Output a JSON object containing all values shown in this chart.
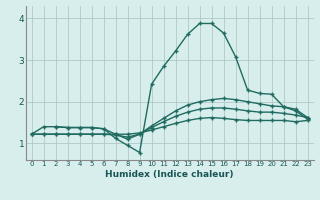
{
  "xlabel": "Humidex (Indice chaleur)",
  "bg_color": "#d8eeed",
  "grid_color": "#b0c8c8",
  "line_color": "#1f6b60",
  "xlim": [
    -0.5,
    23.5
  ],
  "ylim": [
    0.6,
    4.3
  ],
  "xticks": [
    0,
    1,
    2,
    3,
    4,
    5,
    6,
    7,
    8,
    9,
    10,
    11,
    12,
    13,
    14,
    15,
    16,
    17,
    18,
    19,
    20,
    21,
    22,
    23
  ],
  "yticks": [
    1,
    2,
    3,
    4
  ],
  "line1_x": [
    0,
    1,
    2,
    3,
    4,
    5,
    6,
    7,
    8,
    9,
    10,
    11,
    12,
    13,
    14,
    15,
    16,
    17,
    18,
    19,
    20,
    21,
    22,
    23
  ],
  "line1_y": [
    1.22,
    1.22,
    1.22,
    1.22,
    1.22,
    1.22,
    1.22,
    1.22,
    1.22,
    1.25,
    1.32,
    1.4,
    1.48,
    1.55,
    1.6,
    1.62,
    1.6,
    1.57,
    1.55,
    1.55,
    1.55,
    1.55,
    1.52,
    1.55
  ],
  "line2_x": [
    0,
    1,
    2,
    3,
    4,
    5,
    6,
    7,
    8,
    9,
    10,
    11,
    12,
    13,
    14,
    15,
    16,
    17,
    18,
    19,
    20,
    21,
    22,
    23
  ],
  "line2_y": [
    1.22,
    1.22,
    1.22,
    1.22,
    1.22,
    1.22,
    1.22,
    1.2,
    1.15,
    1.22,
    1.38,
    1.52,
    1.65,
    1.75,
    1.82,
    1.85,
    1.85,
    1.82,
    1.78,
    1.75,
    1.75,
    1.72,
    1.68,
    1.62
  ],
  "line3_x": [
    0,
    1,
    2,
    3,
    4,
    5,
    6,
    7,
    8,
    9,
    10,
    11,
    12,
    13,
    14,
    15,
    16,
    17,
    18,
    19,
    20,
    21,
    22,
    23
  ],
  "line3_y": [
    1.22,
    1.4,
    1.4,
    1.38,
    1.38,
    1.38,
    1.35,
    1.22,
    1.1,
    1.22,
    1.42,
    1.6,
    1.78,
    1.92,
    2.0,
    2.05,
    2.08,
    2.05,
    2.0,
    1.95,
    1.9,
    1.88,
    1.82,
    1.62
  ],
  "line4_x": [
    2,
    3,
    4,
    5,
    6,
    7,
    8,
    9,
    10,
    11,
    12,
    13,
    14,
    15,
    16,
    17,
    18,
    19,
    20,
    21,
    22,
    23
  ],
  "line4_y": [
    1.4,
    1.38,
    1.38,
    1.38,
    1.35,
    1.12,
    0.95,
    0.78,
    2.42,
    2.85,
    3.22,
    3.62,
    3.88,
    3.88,
    3.65,
    3.08,
    2.28,
    2.2,
    2.18,
    1.88,
    1.78,
    1.58
  ]
}
